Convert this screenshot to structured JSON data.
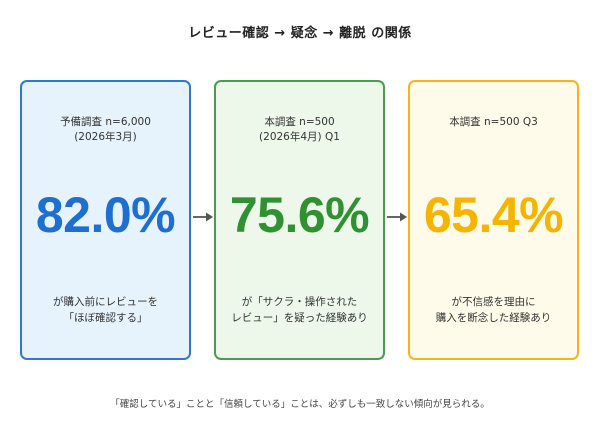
{
  "title": "レビュー確認 → 疑念 → 離脱 の関係",
  "cards": [
    {
      "label_lines": [
        "予備調査 n=6,000",
        "(2026年3月)"
      ],
      "value": "82.0%",
      "desc_lines": [
        "が購入前にレビューを",
        "「ほぼ確認する」"
      ],
      "accent_color": "#1e6fd0",
      "border_color": "#2f78d1",
      "bg_color": "#e6f3fd"
    },
    {
      "label_lines": [
        "本調査 n=500",
        "(2026年4月) Q1"
      ],
      "value": "75.6%",
      "desc_lines": [
        "が「サクラ・操作された",
        "レビュー」を疑った経験あり"
      ],
      "accent_color": "#2f9131",
      "border_color": "#4a9d4c",
      "bg_color": "#edf7ea"
    },
    {
      "label_lines": [
        "本調査 n=500 Q3"
      ],
      "value": "65.4%",
      "desc_lines": [
        "が不信感を理由に",
        "購入を断念した経験あり"
      ],
      "accent_color": "#f5b400",
      "border_color": "#f2b51e",
      "bg_color": "#fefbea"
    }
  ],
  "arrow_color": "#555555",
  "footnote": "「確認している」ことと「信頼している」ことは、必ずしも一致しない傾向が見られる。"
}
